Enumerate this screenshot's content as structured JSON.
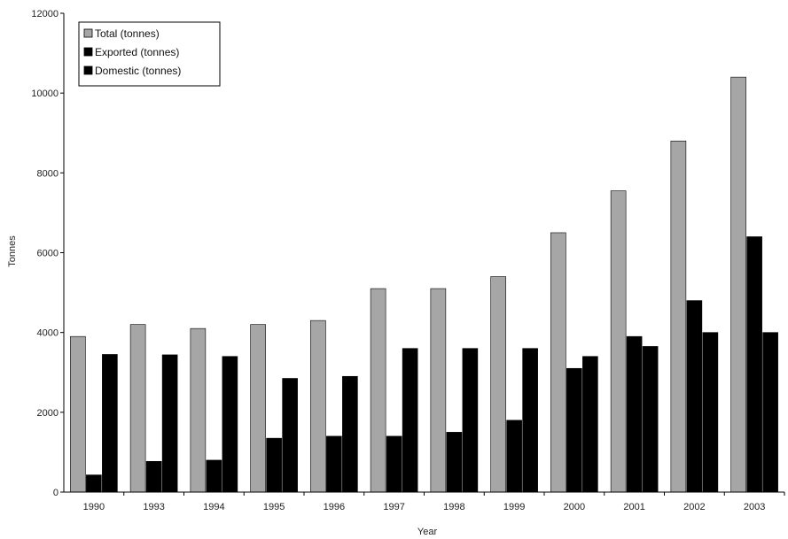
{
  "chart_data": {
    "type": "bar",
    "categories": [
      "1990",
      "1993",
      "1994",
      "1995",
      "1996",
      "1997",
      "1998",
      "1999",
      "2000",
      "2001",
      "2002",
      "2003"
    ],
    "series": [
      {
        "name": "Total (tonnes)",
        "color": "#a6a6a6",
        "values": [
          3900,
          4200,
          4100,
          4200,
          4300,
          5100,
          5100,
          5400,
          6500,
          7550,
          8800,
          10400
        ]
      },
      {
        "name": "Exported (tonnes)",
        "color": "#000000",
        "values": [
          430,
          770,
          800,
          1350,
          1400,
          1400,
          1500,
          1800,
          3100,
          3900,
          4800,
          6400
        ]
      },
      {
        "name": "Domestic (tonnes)",
        "color": "#000000",
        "values": [
          3450,
          3440,
          3400,
          2850,
          2900,
          3600,
          3600,
          3600,
          3400,
          3650,
          4000,
          4000
        ]
      }
    ],
    "xlabel": "Year",
    "ylabel": "Tonnes",
    "ylim": [
      0,
      12000
    ],
    "yticks": [
      0,
      2000,
      4000,
      6000,
      8000,
      10000,
      12000
    ],
    "grid": false,
    "legend_position": "top-left"
  }
}
